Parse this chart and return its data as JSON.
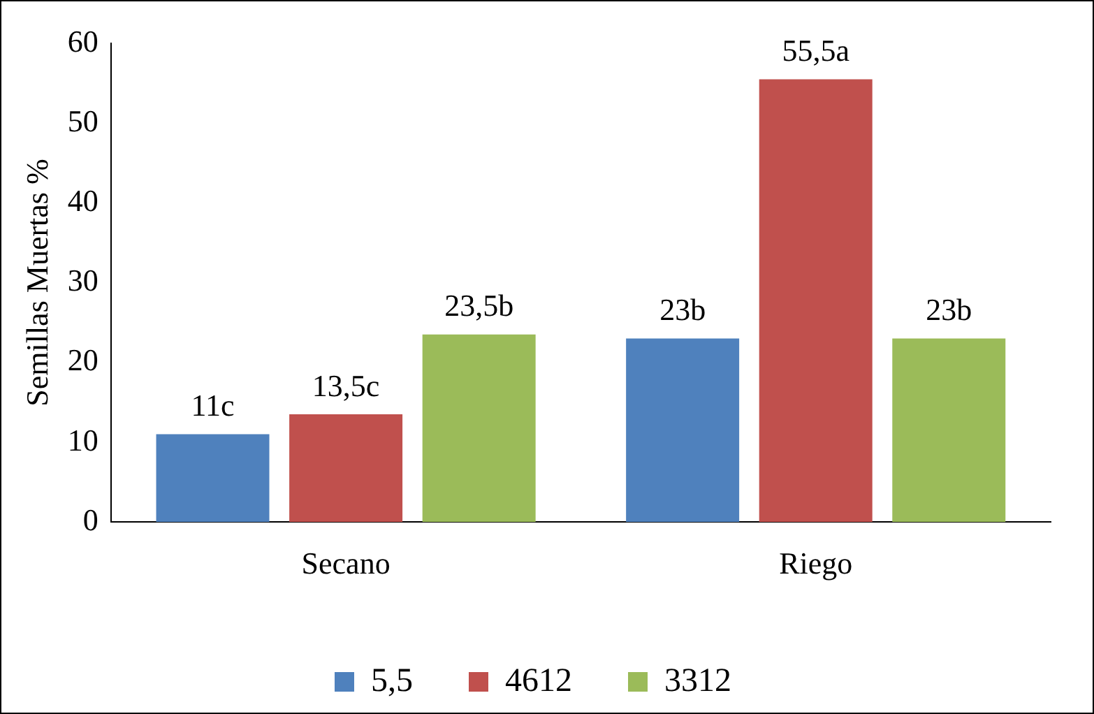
{
  "chart_data": {
    "type": "bar",
    "ylabel": "Semillas Muertas %",
    "categories": [
      "Secano",
      "Riego"
    ],
    "series": [
      {
        "name": "5,5",
        "color": "#4f81bd",
        "values": [
          11,
          23
        ],
        "value_labels": [
          "11c",
          "23b"
        ]
      },
      {
        "name": "4612",
        "color": "#c0504d",
        "values": [
          13.5,
          55.5
        ],
        "value_labels": [
          "13,5c",
          "55,5a"
        ]
      },
      {
        "name": "3312",
        "color": "#9bbb59",
        "values": [
          23.5,
          23
        ],
        "value_labels": [
          "23,5b",
          "23b"
        ]
      }
    ],
    "ylim": [
      0,
      60
    ],
    "yticks": [
      0,
      10,
      20,
      30,
      40,
      50,
      60
    ],
    "grid": false,
    "legend": "bottom"
  }
}
